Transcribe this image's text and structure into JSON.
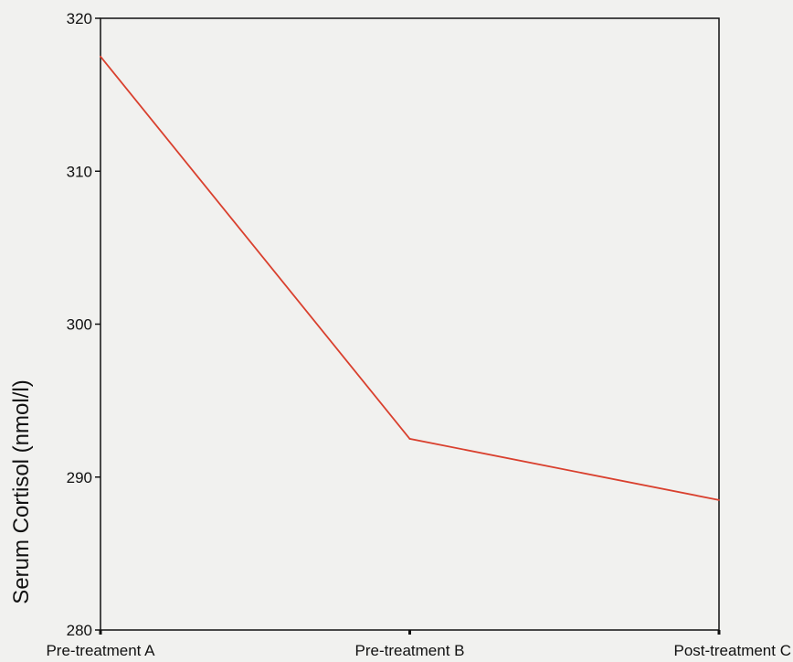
{
  "chart_data": {
    "type": "line",
    "title": "",
    "xlabel": "",
    "ylabel": "Serum Cortisol (nmol/l)",
    "categories": [
      "Pre-treatment A",
      "Pre-treatment B",
      "Post-treatment C"
    ],
    "series": [
      {
        "values": [
          317.5,
          292.5,
          288.5
        ],
        "color": "#d9402e"
      }
    ],
    "ylim": [
      280,
      320
    ],
    "yticks": [
      "280",
      "290",
      "300",
      "310",
      "320"
    ],
    "grid": false,
    "legend": "none"
  }
}
